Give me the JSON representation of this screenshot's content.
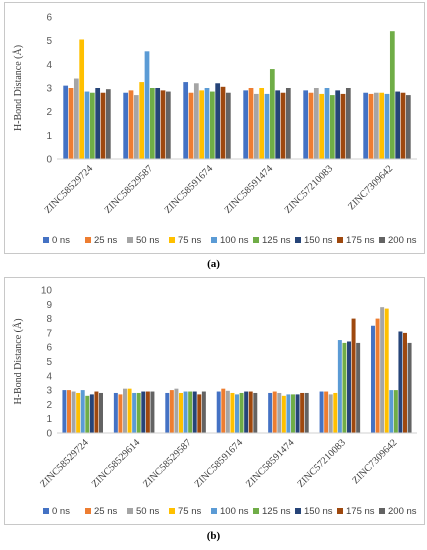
{
  "chart_data": [
    {
      "type": "bar",
      "ylabel": "H-Bond Distance (Å)",
      "ylim": [
        0,
        6
      ],
      "yticks": [
        0,
        1,
        2,
        3,
        4,
        5,
        6
      ],
      "grid": false,
      "legend_position": "bottom",
      "categories": [
        "ZINC58529724",
        "ZINC58529587",
        "ZINC58591674",
        "ZINC58591474",
        "ZINC57210083",
        "ZINC7309642"
      ],
      "series": [
        {
          "name": "0 ns",
          "color": "#4472c4",
          "values": [
            3.1,
            2.8,
            3.25,
            2.9,
            2.9,
            2.8
          ]
        },
        {
          "name": "25 ns",
          "color": "#ed7d31",
          "values": [
            3.0,
            2.9,
            2.8,
            3.0,
            2.8,
            2.75
          ]
        },
        {
          "name": "50 ns",
          "color": "#a5a5a5",
          "values": [
            3.4,
            2.7,
            3.2,
            2.75,
            3.0,
            2.8
          ]
        },
        {
          "name": "75 ns",
          "color": "#ffc000",
          "values": [
            5.05,
            3.25,
            2.9,
            3.0,
            2.75,
            2.8
          ]
        },
        {
          "name": "100 ns",
          "color": "#5b9bd5",
          "values": [
            2.85,
            4.55,
            3.0,
            2.75,
            3.0,
            2.75
          ]
        },
        {
          "name": "125 ns",
          "color": "#70ad47",
          "values": [
            2.8,
            3.0,
            2.85,
            3.8,
            2.7,
            5.4
          ]
        },
        {
          "name": "150 ns",
          "color": "#264478",
          "values": [
            3.0,
            3.0,
            3.2,
            2.9,
            2.9,
            2.85
          ]
        },
        {
          "name": "175 ns",
          "color": "#9e480e",
          "values": [
            2.8,
            2.9,
            3.05,
            2.8,
            2.75,
            2.8
          ]
        },
        {
          "name": "200 ns",
          "color": "#636363",
          "values": [
            2.95,
            2.85,
            2.8,
            3.0,
            3.0,
            2.7
          ]
        }
      ]
    },
    {
      "type": "bar",
      "ylabel": "H-Bond Distance (Å)",
      "ylim": [
        0,
        10
      ],
      "yticks": [
        0,
        1,
        2,
        3,
        4,
        5,
        6,
        7,
        8,
        9,
        10
      ],
      "grid": false,
      "legend_position": "bottom",
      "categories": [
        "ZINC58529724",
        "ZINC58529614",
        "ZINC58529587",
        "ZINC58591674",
        "ZINC58591474",
        "ZINC57210083",
        "ZINC7309642"
      ],
      "series": [
        {
          "name": "0 ns",
          "color": "#4472c4",
          "values": [
            3.0,
            2.8,
            2.8,
            2.9,
            2.8,
            2.9,
            7.5
          ]
        },
        {
          "name": "25 ns",
          "color": "#ed7d31",
          "values": [
            3.0,
            2.7,
            3.0,
            3.1,
            2.9,
            2.9,
            8.0
          ]
        },
        {
          "name": "50 ns",
          "color": "#a5a5a5",
          "values": [
            2.9,
            3.1,
            3.1,
            2.95,
            2.8,
            2.7,
            8.8
          ]
        },
        {
          "name": "75 ns",
          "color": "#ffc000",
          "values": [
            2.8,
            3.1,
            2.8,
            2.8,
            2.6,
            2.8,
            8.7
          ]
        },
        {
          "name": "100 ns",
          "color": "#5b9bd5",
          "values": [
            3.0,
            2.8,
            2.9,
            2.7,
            2.7,
            6.5,
            3.0
          ]
        },
        {
          "name": "125 ns",
          "color": "#70ad47",
          "values": [
            2.6,
            2.8,
            2.9,
            2.8,
            2.7,
            6.3,
            3.0
          ]
        },
        {
          "name": "150 ns",
          "color": "#264478",
          "values": [
            2.7,
            2.9,
            2.9,
            2.9,
            2.7,
            6.4,
            7.1
          ]
        },
        {
          "name": "175 ns",
          "color": "#9e480e",
          "values": [
            2.9,
            2.9,
            2.7,
            2.9,
            2.8,
            8.0,
            7.0
          ]
        },
        {
          "name": "200 ns",
          "color": "#636363",
          "values": [
            2.8,
            2.9,
            2.9,
            2.8,
            2.8,
            6.3,
            6.3
          ]
        }
      ]
    }
  ],
  "captions": {
    "a": "(a)",
    "b": "(b)"
  }
}
